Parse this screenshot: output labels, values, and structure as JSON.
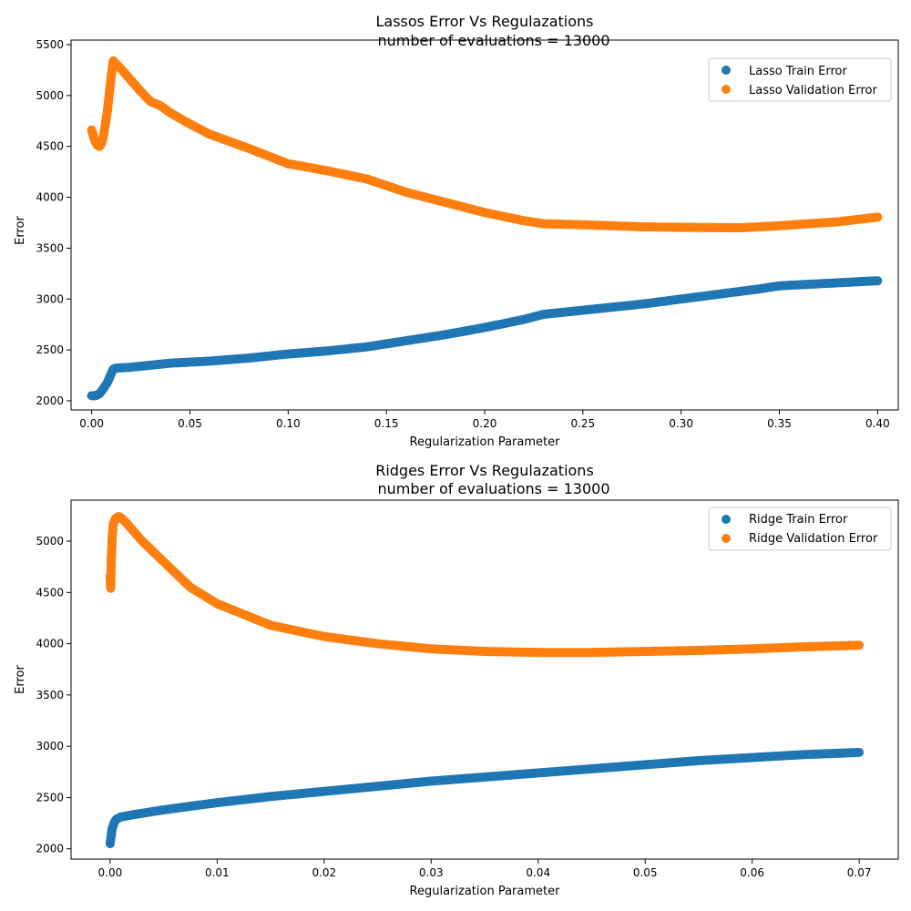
{
  "chart_data": [
    {
      "type": "scatter",
      "title": "Lassos Error Vs Regulazations",
      "subtitle": "number of evaluations = 13000",
      "xlabel": "Regularization Parameter",
      "ylabel": "Error",
      "xlim": [
        -0.0105,
        0.4105
      ],
      "ylim": [
        1910,
        5545
      ],
      "xticks": [
        0.0,
        0.05,
        0.1,
        0.15,
        0.2,
        0.25,
        0.3,
        0.35,
        0.4
      ],
      "xtick_labels": [
        "0.00",
        "0.05",
        "0.10",
        "0.15",
        "0.20",
        "0.25",
        "0.30",
        "0.35",
        "0.40"
      ],
      "yticks": [
        2000,
        2500,
        3000,
        3500,
        4000,
        4500,
        5000,
        5500
      ],
      "ytick_labels": [
        "2000",
        "2500",
        "3000",
        "3500",
        "4000",
        "4500",
        "5000",
        "5500"
      ],
      "grid": false,
      "legend_position": "top-right",
      "series": [
        {
          "name": "Lasso Train Error",
          "color": "#1f77b4",
          "x": [
            0.0,
            0.002,
            0.004,
            0.006,
            0.008,
            0.01,
            0.011,
            0.012,
            0.02,
            0.03,
            0.04,
            0.06,
            0.08,
            0.1,
            0.12,
            0.14,
            0.16,
            0.18,
            0.2,
            0.22,
            0.23,
            0.25,
            0.28,
            0.3,
            0.32,
            0.34,
            0.35,
            0.37,
            0.4
          ],
          "y": [
            2050,
            2050,
            2070,
            2120,
            2180,
            2270,
            2310,
            2320,
            2330,
            2350,
            2370,
            2390,
            2420,
            2460,
            2490,
            2530,
            2590,
            2650,
            2720,
            2800,
            2850,
            2890,
            2950,
            3000,
            3050,
            3100,
            3130,
            3150,
            3180
          ]
        },
        {
          "name": "Lasso Validation Error",
          "color": "#ff7f0e",
          "x": [
            0.0,
            0.001,
            0.002,
            0.003,
            0.004,
            0.005,
            0.006,
            0.008,
            0.01,
            0.011,
            0.015,
            0.02,
            0.025,
            0.03,
            0.035,
            0.04,
            0.05,
            0.06,
            0.08,
            0.1,
            0.12,
            0.14,
            0.16,
            0.18,
            0.2,
            0.22,
            0.23,
            0.25,
            0.28,
            0.3,
            0.33,
            0.35,
            0.38,
            0.4
          ],
          "y": [
            4660,
            4590,
            4540,
            4510,
            4500,
            4530,
            4600,
            4850,
            5200,
            5340,
            5260,
            5150,
            5040,
            4940,
            4900,
            4830,
            4720,
            4620,
            4480,
            4330,
            4260,
            4180,
            4050,
            3950,
            3850,
            3770,
            3740,
            3730,
            3710,
            3705,
            3700,
            3720,
            3760,
            3805
          ]
        }
      ]
    },
    {
      "type": "scatter",
      "title": "Ridges Error Vs Regulazations",
      "subtitle": "number of evaluations = 13000",
      "xlabel": "Regularization Parameter",
      "ylabel": "Error",
      "xlim": [
        -0.00365,
        0.07365
      ],
      "ylim": [
        1900,
        5400
      ],
      "xticks": [
        0.0,
        0.01,
        0.02,
        0.03,
        0.04,
        0.05,
        0.06,
        0.07
      ],
      "xtick_labels": [
        "0.00",
        "0.01",
        "0.02",
        "0.03",
        "0.04",
        "0.05",
        "0.06",
        "0.07"
      ],
      "yticks": [
        2000,
        2500,
        3000,
        3500,
        4000,
        4500,
        5000
      ],
      "ytick_labels": [
        "2000",
        "2500",
        "3000",
        "3500",
        "4000",
        "4500",
        "5000"
      ],
      "grid": false,
      "legend_position": "top-right",
      "series": [
        {
          "name": "Ridge Train Error",
          "color": "#1f77b4",
          "x": [
            0.0,
            0.0001,
            0.0002,
            0.0004,
            0.0006,
            0.001,
            0.002,
            0.005,
            0.01,
            0.015,
            0.02,
            0.025,
            0.03,
            0.035,
            0.04,
            0.045,
            0.05,
            0.055,
            0.06,
            0.065,
            0.07
          ],
          "y": [
            2050,
            2130,
            2200,
            2260,
            2290,
            2310,
            2330,
            2380,
            2450,
            2510,
            2560,
            2610,
            2660,
            2700,
            2740,
            2780,
            2820,
            2860,
            2890,
            2920,
            2940
          ]
        },
        {
          "name": "Ridge Validation Error",
          "color": "#ff7f0e",
          "x": [
            0.0,
            5e-05,
            0.0001,
            0.0002,
            0.0003,
            0.0005,
            0.0008,
            0.001,
            0.0015,
            0.002,
            0.003,
            0.005,
            0.0075,
            0.01,
            0.015,
            0.02,
            0.025,
            0.03,
            0.035,
            0.04,
            0.045,
            0.05,
            0.055,
            0.06,
            0.065,
            0.07
          ],
          "y": [
            4660,
            4540,
            4800,
            5050,
            5170,
            5220,
            5240,
            5230,
            5180,
            5120,
            5000,
            4800,
            4550,
            4390,
            4180,
            4070,
            4000,
            3950,
            3925,
            3915,
            3915,
            3925,
            3935,
            3950,
            3970,
            3985
          ]
        }
      ]
    }
  ]
}
